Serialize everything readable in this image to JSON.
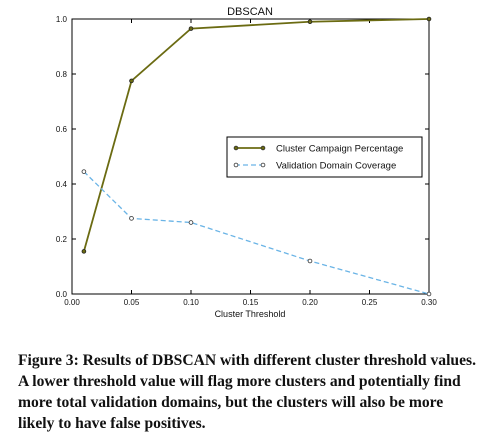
{
  "chart_data": {
    "type": "line",
    "title": "DBSCAN",
    "xlabel": "Cluster Threshold",
    "ylabel": "",
    "xlim": [
      0.0,
      0.3
    ],
    "ylim": [
      0.0,
      1.0
    ],
    "xticks": [
      "0.00",
      "0.05",
      "0.10",
      "0.15",
      "0.20",
      "0.25",
      "0.30"
    ],
    "yticks": [
      "0.0",
      "0.2",
      "0.4",
      "0.6",
      "0.8",
      "1.0"
    ],
    "grid": false,
    "legend_position": "center-right",
    "series": [
      {
        "name": "Cluster Campaign Percentage",
        "color": "#6b6b12",
        "style": "solid",
        "x": [
          0.01,
          0.05,
          0.1,
          0.2,
          0.3
        ],
        "y": [
          0.155,
          0.775,
          0.965,
          0.99,
          1.0
        ]
      },
      {
        "name": "Validation Domain Coverage",
        "color": "#6ab4e6",
        "style": "dashed",
        "x": [
          0.01,
          0.05,
          0.1,
          0.2,
          0.3
        ],
        "y": [
          0.445,
          0.275,
          0.26,
          0.12,
          0.0
        ]
      }
    ]
  },
  "caption": {
    "text": "Figure 3: Results of DBSCAN with different cluster threshold values. A lower threshold value will flag more clusters and potentially find more total validation domains, but the clusters will also be more likely to have false positives."
  }
}
